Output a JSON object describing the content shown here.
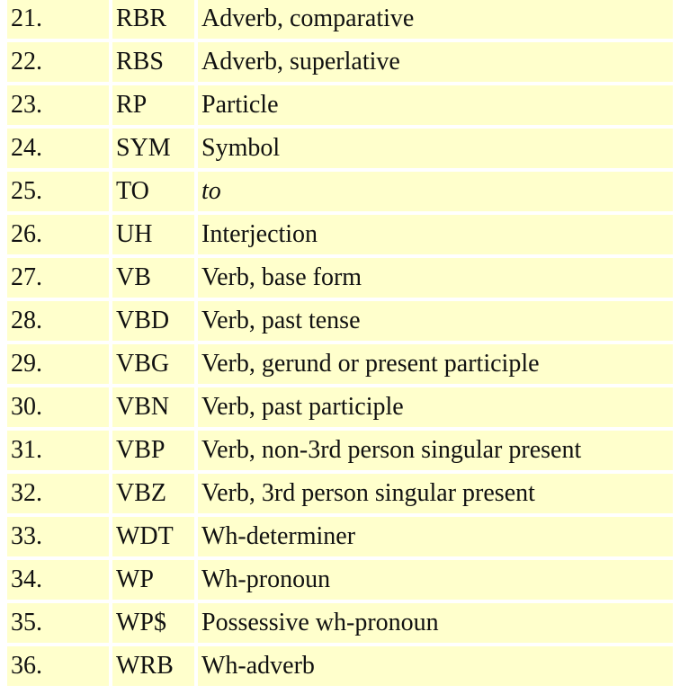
{
  "colors": {
    "cell_background": "#ffffcc",
    "page_background": "#ffffff",
    "text": "#111111"
  },
  "rows": [
    {
      "num": "21.",
      "tag": "RBR",
      "desc": "Adverb, comparative",
      "italic": false
    },
    {
      "num": "22.",
      "tag": "RBS",
      "desc": "Adverb, superlative",
      "italic": false
    },
    {
      "num": "23.",
      "tag": "RP",
      "desc": "Particle",
      "italic": false
    },
    {
      "num": "24.",
      "tag": "SYM",
      "desc": "Symbol",
      "italic": false
    },
    {
      "num": "25.",
      "tag": "TO",
      "desc": "to",
      "italic": true
    },
    {
      "num": "26.",
      "tag": "UH",
      "desc": "Interjection",
      "italic": false
    },
    {
      "num": "27.",
      "tag": "VB",
      "desc": "Verb, base form",
      "italic": false
    },
    {
      "num": "28.",
      "tag": "VBD",
      "desc": "Verb, past tense",
      "italic": false
    },
    {
      "num": "29.",
      "tag": "VBG",
      "desc": "Verb, gerund or present participle",
      "italic": false
    },
    {
      "num": "30.",
      "tag": "VBN",
      "desc": "Verb, past participle",
      "italic": false
    },
    {
      "num": "31.",
      "tag": "VBP",
      "desc": "Verb, non-3rd person singular present",
      "italic": false
    },
    {
      "num": "32.",
      "tag": "VBZ",
      "desc": "Verb, 3rd person singular present",
      "italic": false
    },
    {
      "num": "33.",
      "tag": "WDT",
      "desc": "Wh-determiner",
      "italic": false
    },
    {
      "num": "34.",
      "tag": "WP",
      "desc": "Wh-pronoun",
      "italic": false
    },
    {
      "num": "35.",
      "tag": "WP$",
      "desc": "Possessive wh-pronoun",
      "italic": false
    },
    {
      "num": "36.",
      "tag": "WRB",
      "desc": "Wh-adverb",
      "italic": false
    }
  ]
}
